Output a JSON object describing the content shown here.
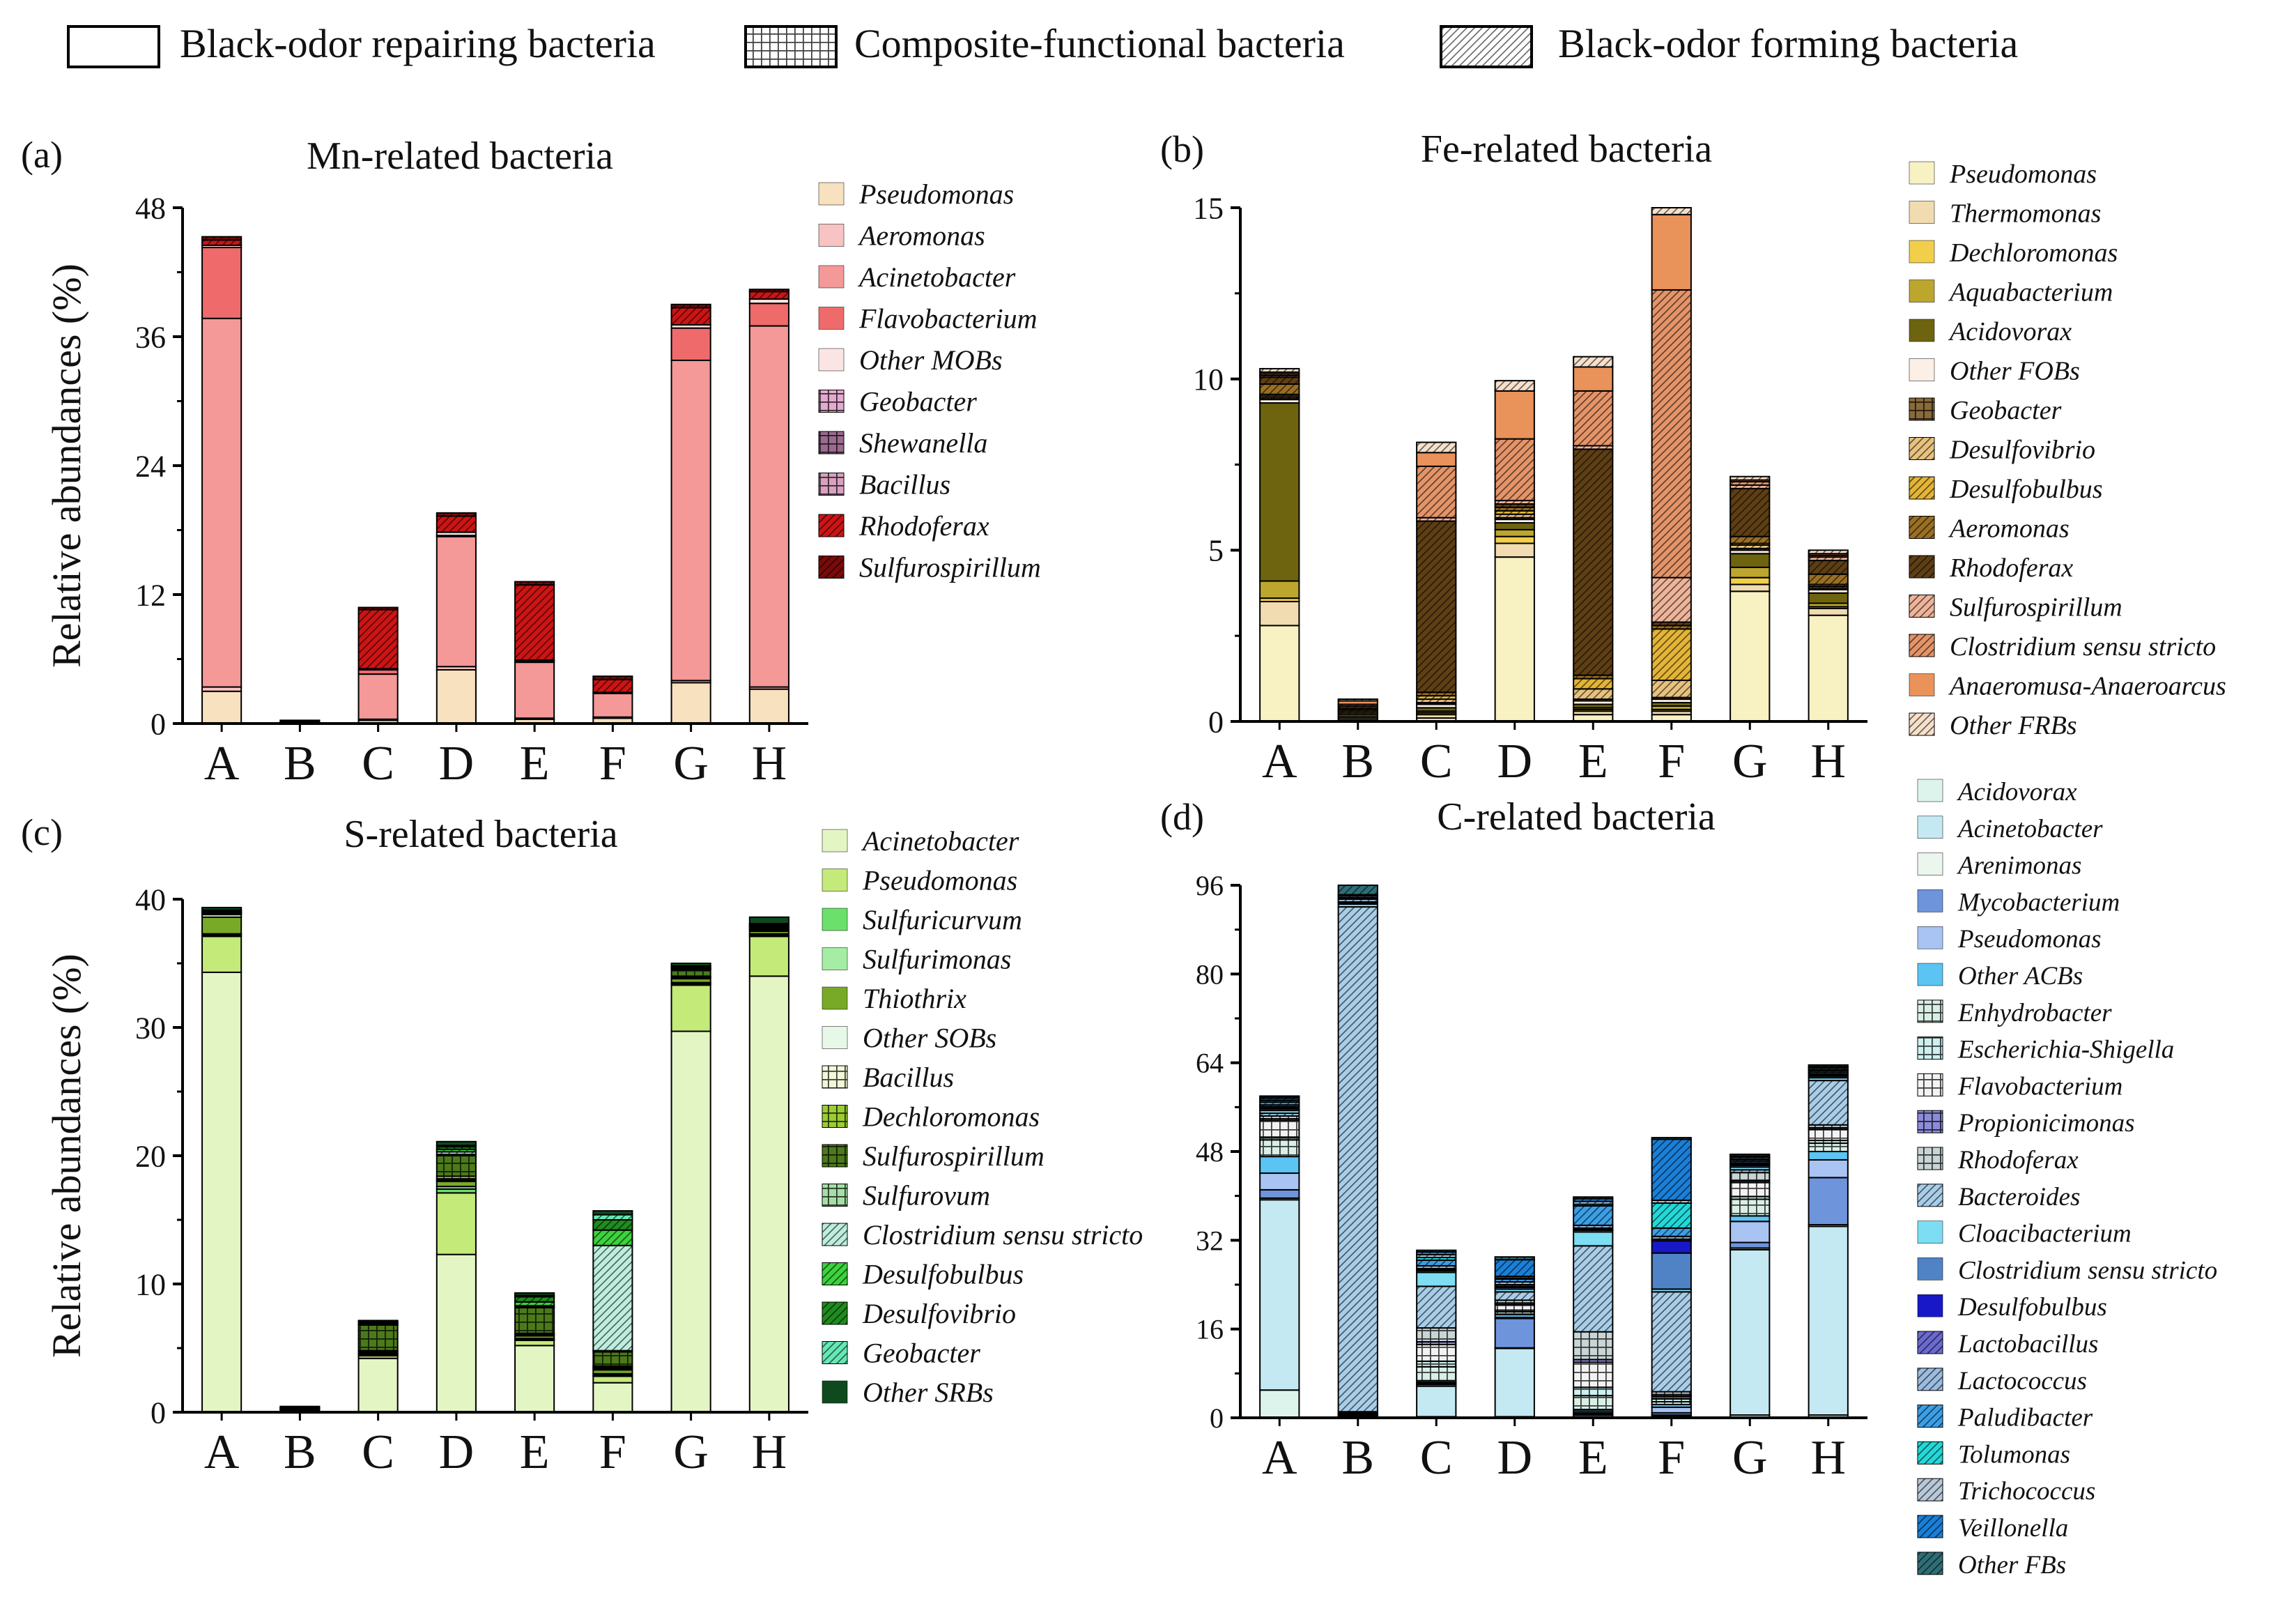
{
  "legend": {
    "items": [
      {
        "label": "Black-odor repairing bacteria",
        "pattern": "none"
      },
      {
        "label": "Composite-functional bacteria",
        "pattern": "grid"
      },
      {
        "label": "Black-odor forming bacteria",
        "pattern": "diag"
      }
    ]
  },
  "chart_data": [
    {
      "panel": "(a)",
      "type": "bar",
      "stacked": true,
      "title": "Mn-related bacteria",
      "xlabel": "",
      "ylabel": "Relative abundances (%)",
      "ylim": [
        0,
        48
      ],
      "ticks": [
        0,
        12,
        24,
        36,
        48
      ],
      "categories": [
        "A",
        "B",
        "C",
        "D",
        "E",
        "F",
        "G",
        "H"
      ],
      "series": [
        {
          "name": "Pseudomonas",
          "color": "#F7E1BE",
          "pattern": "none",
          "values": [
            3,
            0,
            0.3,
            5,
            0.4,
            0.5,
            3.8,
            3.2
          ]
        },
        {
          "name": "Aeromonas",
          "color": "#F7C3C3",
          "pattern": "none",
          "values": [
            0.4,
            0,
            0.1,
            0.3,
            0.1,
            0.1,
            0.2,
            0.2
          ]
        },
        {
          "name": "Acinetobacter",
          "color": "#F49898",
          "pattern": "none",
          "values": [
            34.3,
            0.1,
            4.2,
            12.1,
            5.2,
            2.2,
            29.8,
            33.6
          ]
        },
        {
          "name": "Flavobacterium",
          "color": "#EF6B6B",
          "pattern": "none",
          "values": [
            6.6,
            0,
            0.4,
            0.1,
            0.1,
            0.1,
            3,
            2.1
          ]
        },
        {
          "name": "Other MOBs",
          "color": "#FBE4E4",
          "pattern": "none",
          "values": [
            0.2,
            0,
            0.1,
            0.3,
            0.1,
            0,
            0.3,
            0.4
          ]
        },
        {
          "name": "Geobacter",
          "color": "#E3A9CF",
          "pattern": "grid",
          "values": [
            0,
            0,
            0,
            0,
            0,
            0,
            0,
            0
          ]
        },
        {
          "name": "Shewanella",
          "color": "#9B6A8E",
          "pattern": "grid",
          "values": [
            0,
            0,
            0,
            0,
            0,
            0,
            0,
            0
          ]
        },
        {
          "name": "Bacillus",
          "color": "#D9A0C0",
          "pattern": "grid",
          "values": [
            0,
            0,
            0,
            0,
            0,
            0,
            0,
            0
          ]
        },
        {
          "name": "Rhodoferax",
          "color": "#CC1414",
          "pattern": "diag",
          "values": [
            0.5,
            0.1,
            5.5,
            1.5,
            7,
            1.2,
            1.6,
            0.7
          ]
        },
        {
          "name": "Sulfurospirillum",
          "color": "#7A0A0A",
          "pattern": "diag",
          "values": [
            0.3,
            0.1,
            0.2,
            0.3,
            0.3,
            0.3,
            0.3,
            0.2
          ]
        }
      ]
    },
    {
      "panel": "(b)",
      "type": "bar",
      "stacked": true,
      "title": "Fe-related bacteria",
      "xlabel": "",
      "ylabel": "",
      "ylim": [
        0,
        15
      ],
      "ticks": [
        0,
        5,
        10,
        15
      ],
      "categories": [
        "A",
        "B",
        "C",
        "D",
        "E",
        "F",
        "G",
        "H"
      ],
      "series": [
        {
          "name": "Pseudomonas",
          "color": "#F8F1C2",
          "pattern": "none",
          "values": [
            2.8,
            0.05,
            0.1,
            4.8,
            0.2,
            0.2,
            3.8,
            3.1
          ]
        },
        {
          "name": "Thermomonas",
          "color": "#F0DCB0",
          "pattern": "none",
          "values": [
            0.7,
            0.05,
            0.1,
            0.4,
            0.1,
            0.1,
            0.2,
            0.2
          ]
        },
        {
          "name": "Dechloromonas",
          "color": "#F2CF4A",
          "pattern": "none",
          "values": [
            0.1,
            0,
            0.05,
            0.2,
            0.05,
            0.05,
            0.2,
            0.05
          ]
        },
        {
          "name": "Aquabacterium",
          "color": "#BDA62E",
          "pattern": "none",
          "values": [
            0.5,
            0.05,
            0.05,
            0.2,
            0.05,
            0.1,
            0.3,
            0.1
          ]
        },
        {
          "name": "Acidovorax",
          "color": "#6E6410",
          "pattern": "none",
          "values": [
            5.2,
            0,
            0.1,
            0.2,
            0.1,
            0.1,
            0.4,
            0.3
          ]
        },
        {
          "name": "Other FOBs",
          "color": "#FCEFE6",
          "pattern": "none",
          "values": [
            0.1,
            0.05,
            0.1,
            0.1,
            0.1,
            0.1,
            0.1,
            0.1
          ]
        },
        {
          "name": "Geobacter",
          "color": "#8A6A3A",
          "pattern": "grid",
          "values": [
            0.05,
            0,
            0.05,
            0.05,
            0.05,
            0.05,
            0.05,
            0.05
          ]
        },
        {
          "name": "Desulfovibrio",
          "color": "#E7C27E",
          "pattern": "diag",
          "values": [
            0.05,
            0.05,
            0.1,
            0.1,
            0.3,
            0.5,
            0.1,
            0.05
          ]
        },
        {
          "name": "Desulfobulbus",
          "color": "#E3B436",
          "pattern": "diag",
          "values": [
            0.05,
            0.05,
            0.1,
            0.1,
            0.3,
            1.5,
            0.05,
            0.05
          ]
        },
        {
          "name": "Aeromonas",
          "color": "#9A6F22",
          "pattern": "diag",
          "values": [
            0.3,
            0.05,
            0.1,
            0.1,
            0.1,
            0.1,
            0.2,
            0.3
          ]
        },
        {
          "name": "Rhodoferax",
          "color": "#5E3E14",
          "pattern": "diag",
          "values": [
            0.2,
            0.05,
            5,
            0.1,
            6.6,
            0.1,
            1.4,
            0.4
          ]
        },
        {
          "name": "Sulfurospirillum",
          "color": "#EEB49A",
          "pattern": "diag",
          "values": [
            0.05,
            0.05,
            0.1,
            0.1,
            0.1,
            1.3,
            0.1,
            0.1
          ]
        },
        {
          "name": "Clostridium sensu stricto",
          "color": "#E49468",
          "pattern": "diag",
          "values": [
            0.05,
            0.05,
            1.5,
            1.8,
            1.6,
            8.4,
            0.1,
            0.05
          ]
        },
        {
          "name": "Anaeromusa-Anaeroarcus",
          "color": "#E9925A",
          "pattern": "none",
          "values": [
            0.05,
            0.1,
            0.4,
            1.4,
            0.7,
            2.2,
            0.05,
            0.05
          ]
        },
        {
          "name": "Other FRBs",
          "color": "#F6E0CB",
          "pattern": "diag",
          "values": [
            0.1,
            0.05,
            0.3,
            0.3,
            0.3,
            0.3,
            0.1,
            0.1
          ]
        }
      ]
    },
    {
      "panel": "(c)",
      "type": "bar",
      "stacked": true,
      "title": "S-related bacteria",
      "xlabel": "",
      "ylabel": "Relative abundances (%)",
      "ylim": [
        0,
        40
      ],
      "ticks": [
        0,
        10,
        20,
        30,
        40
      ],
      "categories": [
        "A",
        "B",
        "C",
        "D",
        "E",
        "F",
        "G",
        "H"
      ],
      "series": [
        {
          "name": "Acinetobacter",
          "color": "#E4F5C4",
          "pattern": "none",
          "values": [
            34.3,
            0.1,
            4.2,
            12.3,
            5.2,
            2.3,
            29.7,
            34
          ]
        },
        {
          "name": "Pseudomonas",
          "color": "#C4EA7A",
          "pattern": "none",
          "values": [
            2.8,
            0.05,
            0.2,
            4.8,
            0.4,
            0.5,
            3.6,
            3.1
          ]
        },
        {
          "name": "Sulfuricurvum",
          "color": "#6BE06B",
          "pattern": "none",
          "values": [
            0.1,
            0,
            0.05,
            0.3,
            0.05,
            0.1,
            0.1,
            0.1
          ]
        },
        {
          "name": "Sulfurimonas",
          "color": "#A5EDA5",
          "pattern": "none",
          "values": [
            0.1,
            0,
            0.05,
            0.2,
            0.1,
            0.1,
            0.1,
            0.1
          ]
        },
        {
          "name": "Thiothrix",
          "color": "#78AA28",
          "pattern": "none",
          "values": [
            1.3,
            0,
            0.1,
            0.4,
            0.2,
            0.3,
            0.3,
            0.2
          ]
        },
        {
          "name": "Other SOBs",
          "color": "#E8F8E8",
          "pattern": "none",
          "values": [
            0.2,
            0.05,
            0.1,
            0.1,
            0.1,
            0.1,
            0.1,
            0.1
          ]
        },
        {
          "name": "Bacillus",
          "color": "#F2F7D8",
          "pattern": "grid",
          "values": [
            0.05,
            0,
            0.05,
            0.1,
            0.05,
            0.1,
            0.05,
            0.05
          ]
        },
        {
          "name": "Dechloromonas",
          "color": "#9ACD32",
          "pattern": "grid",
          "values": [
            0.05,
            0,
            0.05,
            0.2,
            0.05,
            0.1,
            0.05,
            0.05
          ]
        },
        {
          "name": "Sulfurospirillum",
          "color": "#4C7A1A",
          "pattern": "grid",
          "values": [
            0.05,
            0.05,
            2,
            1.6,
            2,
            1.1,
            0.5,
            0.1
          ]
        },
        {
          "name": "Sulfurovum",
          "color": "#A6DFA6",
          "pattern": "grid",
          "values": [
            0.05,
            0,
            0.05,
            0.1,
            0.05,
            0.1,
            0.05,
            0.05
          ]
        },
        {
          "name": "Clostridium sensu stricto",
          "color": "#BDEEDD",
          "pattern": "diag",
          "values": [
            0,
            0.05,
            0.05,
            0.2,
            0.1,
            8.2,
            0.05,
            0.05
          ]
        },
        {
          "name": "Desulfobulbus",
          "color": "#3CD33C",
          "pattern": "diag",
          "values": [
            0.05,
            0,
            0.05,
            0.2,
            0.3,
            1.2,
            0.05,
            0.05
          ]
        },
        {
          "name": "Desulfovibrio",
          "color": "#1E8C1E",
          "pattern": "diag",
          "values": [
            0.05,
            0.05,
            0.1,
            0.2,
            0.4,
            0.8,
            0.1,
            0.1
          ]
        },
        {
          "name": "Geobacter",
          "color": "#64E8B4",
          "pattern": "diag",
          "values": [
            0.05,
            0.05,
            0.05,
            0.1,
            0.1,
            0.4,
            0.05,
            0.05
          ]
        },
        {
          "name": "Other SRBs",
          "color": "#0F4A1E",
          "pattern": "none",
          "values": [
            0.2,
            0.05,
            0.05,
            0.3,
            0.2,
            0.3,
            0.2,
            0.5
          ]
        }
      ]
    },
    {
      "panel": "(d)",
      "type": "bar",
      "stacked": true,
      "title": "C-related bacteria",
      "xlabel": "",
      "ylabel": "",
      "ylim": [
        0,
        96
      ],
      "ticks": [
        0,
        16,
        32,
        48,
        64,
        80,
        96
      ],
      "categories": [
        "A",
        "B",
        "C",
        "D",
        "E",
        "F",
        "G",
        "H"
      ],
      "series": [
        {
          "name": "Acidovorax",
          "color": "#DDF4EC",
          "pattern": "none",
          "values": [
            5,
            0.1,
            0.2,
            0.2,
            0.2,
            0.2,
            0.5,
            0.5
          ]
        },
        {
          "name": "Acinetobacter",
          "color": "#C4E9F2",
          "pattern": "none",
          "values": [
            34.3,
            0.2,
            5.5,
            12.3,
            0.3,
            0.2,
            29.8,
            34
          ]
        },
        {
          "name": "Arenimonas",
          "color": "#EAF6EE",
          "pattern": "none",
          "values": [
            0.3,
            0,
            0.3,
            0.1,
            0.2,
            0.1,
            0.3,
            0.3
          ]
        },
        {
          "name": "Mycobacterium",
          "color": "#6E94DC",
          "pattern": "none",
          "values": [
            1.5,
            0,
            0.2,
            5.3,
            0.2,
            0.4,
            1,
            8.5
          ]
        },
        {
          "name": "Pseudomonas",
          "color": "#A9C3F2",
          "pattern": "none",
          "values": [
            3,
            0.1,
            0.2,
            0.2,
            0.3,
            1,
            3.8,
            3.2
          ]
        },
        {
          "name": "Other ACBs",
          "color": "#5BC4F2",
          "pattern": "none",
          "values": [
            3,
            0.1,
            0.3,
            0.5,
            0.3,
            0.5,
            1,
            1.5
          ]
        },
        {
          "name": "Enhydrobacter",
          "color": "#D9EFE6",
          "pattern": "grid",
          "values": [
            3,
            0.1,
            2.5,
            0.5,
            2.5,
            0.5,
            3,
            1.5
          ]
        },
        {
          "name": "Escherichia-Shigella",
          "color": "#CDEFEF",
          "pattern": "grid",
          "values": [
            0.5,
            0.1,
            1,
            0.3,
            1.5,
            0.5,
            0.5,
            0.5
          ]
        },
        {
          "name": "Flavobacterium",
          "color": "#F2F2F2",
          "pattern": "grid",
          "values": [
            3,
            0.1,
            3,
            1,
            4.5,
            0.5,
            2.5,
            2
          ]
        },
        {
          "name": "Propionicimonas",
          "color": "#8C8CD8",
          "pattern": "grid",
          "values": [
            0.3,
            0.1,
            0.5,
            0.3,
            0.5,
            0.3,
            0.3,
            0.3
          ]
        },
        {
          "name": "Rhodoferax",
          "color": "#C9D4D4",
          "pattern": "grid",
          "values": [
            0.5,
            0.2,
            2.5,
            0.5,
            5,
            0.5,
            1.5,
            0.5
          ]
        },
        {
          "name": "Bacteroides",
          "color": "#A8CDE8",
          "pattern": "diag",
          "values": [
            0.5,
            91,
            7.5,
            1.5,
            15.5,
            18,
            0.5,
            8
          ]
        },
        {
          "name": "Cloacibacterium",
          "color": "#7DDDF2",
          "pattern": "none",
          "values": [
            0.5,
            0.5,
            2.5,
            0.5,
            2.5,
            0.5,
            0.5,
            0.5
          ]
        },
        {
          "name": "Clostridium sensu stricto",
          "color": "#4F83C6",
          "pattern": "none",
          "values": [
            0.3,
            0.2,
            0.3,
            0.3,
            0.3,
            6.5,
            0.3,
            0.3
          ]
        },
        {
          "name": "Desulfobulbus",
          "color": "#1818C8",
          "pattern": "none",
          "values": [
            0.2,
            0.1,
            0.2,
            0.2,
            0.2,
            2.2,
            0.2,
            0.2
          ]
        },
        {
          "name": "Lactobacillus",
          "color": "#6A6AD0",
          "pattern": "diag",
          "values": [
            0.2,
            0.1,
            0.2,
            0.3,
            0.2,
            0.3,
            0.2,
            0.2
          ]
        },
        {
          "name": "Lactococcus",
          "color": "#9BBCE0",
          "pattern": "diag",
          "values": [
            0.3,
            0.5,
            0.5,
            0.5,
            0.5,
            0.5,
            0.3,
            0.3
          ]
        },
        {
          "name": "Paludibacter",
          "color": "#3A9FE6",
          "pattern": "diag",
          "values": [
            0.5,
            0.2,
            1,
            0.5,
            3.5,
            1.5,
            0.3,
            0.3
          ]
        },
        {
          "name": "Tolumonas",
          "color": "#22D8D8",
          "pattern": "diag",
          "values": [
            0.3,
            0.1,
            0.5,
            0.2,
            0.3,
            4.5,
            0.2,
            0.2
          ]
        },
        {
          "name": "Trichococcus",
          "color": "#B8C8D8",
          "pattern": "diag",
          "values": [
            0.3,
            0.3,
            0.5,
            0.3,
            0.5,
            0.5,
            0.3,
            0.3
          ]
        },
        {
          "name": "Veillonella",
          "color": "#1A7FD8",
          "pattern": "diag",
          "values": [
            0.3,
            0.2,
            0.5,
            3,
            0.5,
            11,
            0.2,
            0.2
          ]
        },
        {
          "name": "Other FBs",
          "color": "#2E6E76",
          "pattern": "diag",
          "values": [
            0.2,
            1.8,
            0.3,
            0.5,
            0.3,
            0.3,
            0.3,
            0.3
          ]
        }
      ]
    }
  ]
}
